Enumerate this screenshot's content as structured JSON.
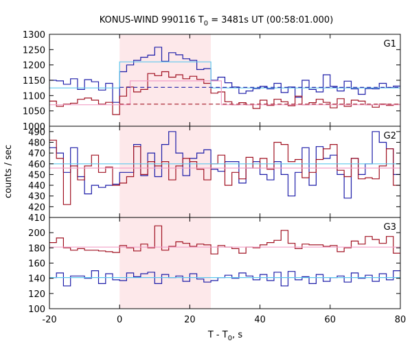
{
  "chart_data": {
    "type": "line",
    "title_main": "KONUS-WIND 990116 T",
    "title_sub": "0",
    "title_rest": " = 3481s UT (00:58:01.000)",
    "xlabel_main": "T - T",
    "xlabel_sub": "0",
    "xlabel_rest": ", s",
    "ylabel": "counts / sec",
    "xlim": [
      -20,
      80
    ],
    "xticks": [
      -20,
      0,
      20,
      40,
      60,
      80
    ],
    "highlight": {
      "x0": 0,
      "x1": 26,
      "color": "#fde8ea"
    },
    "colors": {
      "dark_blue": "#1c1ca8",
      "dark_red": "#a01020",
      "light_blue": "#5ec8ee",
      "pink": "#f2a0c8"
    },
    "step_x": [
      -20,
      -18,
      -16,
      -14,
      -12,
      -10,
      -8,
      -6,
      -4,
      -2,
      0,
      2,
      4,
      6,
      8,
      10,
      12,
      14,
      16,
      18,
      20,
      22,
      24,
      26,
      28,
      30,
      32,
      34,
      36,
      38,
      40,
      42,
      44,
      46,
      48,
      50,
      52,
      54,
      56,
      58,
      60,
      62,
      64,
      66,
      68,
      70,
      72,
      74,
      76,
      78,
      80
    ],
    "panels": [
      {
        "label": "G1",
        "ylim": [
          1000,
          1300
        ],
        "yticks": [
          1000,
          1050,
          1100,
          1150,
          1200,
          1250,
          1300
        ],
        "series": [
          {
            "color": "dark_blue",
            "values": [
              1150,
              1148,
              1137,
              1155,
              1120,
              1152,
              1145,
              1118,
              1140,
              1078,
              1178,
              1200,
              1215,
              1225,
              1232,
              1258,
              1212,
              1240,
              1233,
              1220,
              1215,
              1185,
              1188,
              1150,
              1160,
              1142,
              1128,
              1107,
              1115,
              1123,
              1130,
              1122,
              1140,
              1110,
              1128,
              1095,
              1150,
              1120,
              1112,
              1168,
              1130,
              1115,
              1147,
              1122,
              1104,
              1123,
              1122,
              1140,
              1126,
              1131
            ]
          },
          {
            "color": "dark_red",
            "values": [
              1082,
              1065,
              1072,
              1075,
              1088,
              1092,
              1085,
              1072,
              1078,
              1038,
              1098,
              1128,
              1112,
              1120,
              1172,
              1165,
              1178,
              1160,
              1168,
              1155,
              1163,
              1153,
              1140,
              1108,
              1112,
              1080,
              1070,
              1077,
              1070,
              1058,
              1085,
              1068,
              1088,
              1080,
              1067,
              1098,
              1070,
              1077,
              1088,
              1078,
              1060,
              1090,
              1065,
              1085,
              1082,
              1070,
              1062,
              1072,
              1068,
              1071
            ]
          },
          {
            "color": "light_blue",
            "steps": [
              [
                -20,
                0,
                1125
              ],
              [
                0,
                26,
                1210
              ],
              [
                26,
                80,
                1125
              ]
            ]
          },
          {
            "color": "pink",
            "steps": [
              [
                -20,
                3,
                1070
              ],
              [
                3,
                29,
                1148
              ],
              [
                29,
                80,
                1070
              ]
            ]
          },
          {
            "color": "dark_blue",
            "dashed": true,
            "steps": [
              [
                0,
                80,
                1127
              ]
            ]
          },
          {
            "color": "dark_red",
            "dashed": true,
            "steps": [
              [
                0,
                80,
                1072
              ]
            ]
          }
        ]
      },
      {
        "label": "G2",
        "ylim": [
          410,
          495
        ],
        "yticks": [
          410,
          420,
          430,
          440,
          450,
          460,
          470,
          480,
          490
        ],
        "series": [
          {
            "color": "dark_blue",
            "values": [
              475,
              470,
              452,
              475,
              448,
              432,
              440,
              438,
              440,
              441,
              452,
              452,
              478,
              449,
              470,
              448,
              478,
              490,
              470,
              449,
              465,
              470,
              473,
              455,
              453,
              462,
              462,
              442,
              456,
              462,
              450,
              445,
              462,
              450,
              430,
              452,
              475,
              440,
              476,
              465,
              468,
              450,
              428,
              465,
              450,
              460,
              490,
              480,
              474,
              450
            ]
          },
          {
            "color": "dark_red",
            "values": [
              482,
              465,
              422,
              458,
              445,
              458,
              468,
              452,
              457,
              440,
              442,
              448,
              476,
              450,
              462,
              458,
              462,
              445,
              458,
              465,
              462,
              455,
              445,
              460,
              468,
              440,
              452,
              446,
              466,
              456,
              465,
              455,
              480,
              478,
              462,
              464,
              447,
              452,
              464,
              474,
              478,
              454,
              448,
              465,
              446,
              447,
              446,
              458,
              474,
              440
            ]
          },
          {
            "color": "light_blue",
            "steps": [
              [
                -20,
                80,
                460
              ]
            ]
          },
          {
            "color": "pink",
            "steps": [
              [
                -20,
                80,
                456
              ]
            ]
          }
        ]
      },
      {
        "label": "G3",
        "ylim": [
          100,
          220
        ],
        "yticks": [
          100,
          120,
          140,
          160,
          180,
          200
        ],
        "series": [
          {
            "color": "dark_red",
            "values": [
              187,
              193,
              180,
              177,
              179,
              177,
              177,
              176,
              175,
              174,
              183,
              180,
              176,
              185,
              180,
              209,
              177,
              182,
              188,
              186,
              182,
              185,
              184,
              172,
              183,
              181,
              179,
              173,
              181,
              180,
              184,
              187,
              190,
              203,
              186,
              179,
              185,
              184,
              184,
              182,
              183,
              175,
              180,
              189,
              185,
              195,
              191,
              186,
              195,
              173
            ]
          },
          {
            "color": "dark_blue",
            "values": [
              141,
              147,
              130,
              143,
              143,
              140,
              150,
              133,
              146,
              138,
              137,
              147,
              142,
              146,
              148,
              133,
              145,
              141,
              143,
              136,
              146,
              139,
              135,
              137,
              141,
              144,
              140,
              147,
              143,
              138,
              145,
              137,
              148,
              130,
              149,
              138,
              142,
              133,
              145,
              136,
              141,
              143,
              135,
              147,
              140,
              144,
              136,
              146,
              138,
              150
            ]
          },
          {
            "color": "pink",
            "steps": [
              [
                -20,
                80,
                181
              ]
            ]
          },
          {
            "color": "light_blue",
            "steps": [
              [
                -20,
                80,
                141
              ]
            ]
          }
        ]
      }
    ]
  }
}
